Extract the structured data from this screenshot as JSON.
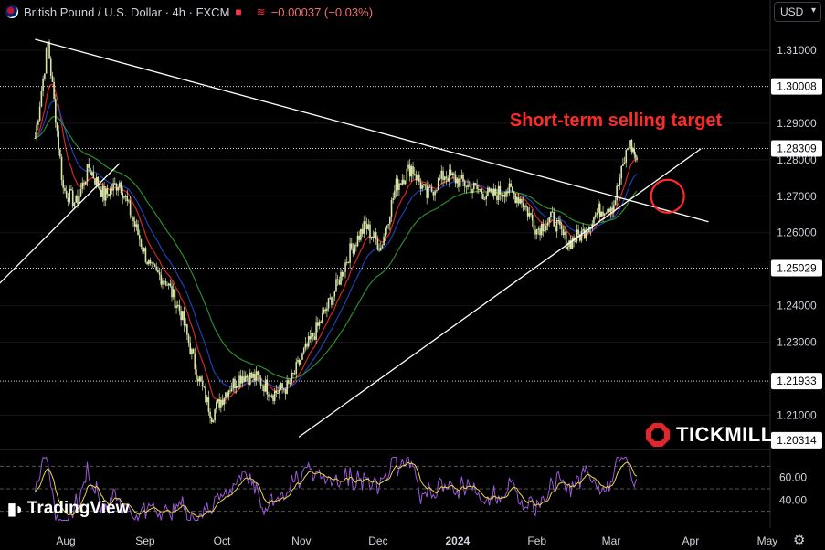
{
  "header": {
    "symbol_title": "British Pound / U.S. Dollar · 4h · FXCM",
    "change": "−0.00037 (−0.03%)"
  },
  "currency_selector": {
    "value": "USD"
  },
  "branding": {
    "tradingview": "TradingView",
    "tickmill": "TICKMILL"
  },
  "colors": {
    "background": "#000000",
    "candle": "#d9e6a8",
    "ema_fast": "#d62728",
    "ema_mid": "#1f3fb4",
    "ema_slow": "#2e8b2e",
    "trendline": "#ffffff",
    "annotation": "#ff2a2a",
    "rsi": "#9b59d6",
    "rsi_signal": "#e6d84a"
  },
  "chart_data": {
    "type": "line",
    "title": "British Pound / U.S. Dollar · 4h · FXCM",
    "x_ticks": [
      "Aug",
      "Sep",
      "Oct",
      "Nov",
      "Dec",
      "2024",
      "Feb",
      "Mar",
      "Apr",
      "May"
    ],
    "y_ticks": [
      "1.31000",
      "1.29000",
      "1.28000",
      "1.27000",
      "1.26000",
      "1.24000",
      "1.23000",
      "1.21000"
    ],
    "ylim": [
      1.2031,
      1.3155
    ],
    "price_labels": [
      "1.30008",
      "1.28309",
      "1.25029",
      "1.21933",
      "1.20314"
    ],
    "annotation": "Short-term selling target",
    "series": [
      {
        "name": "",
        "style": "candles",
        "x": [
          "2023-07-20",
          "2023-07-25",
          "2023-07-31",
          "2023-08-05",
          "2023-08-10",
          "2023-08-16",
          "2023-08-22",
          "2023-08-28",
          "2023-09-03",
          "2023-09-09",
          "2023-09-15",
          "2023-09-21",
          "2023-09-27",
          "2023-10-03",
          "2023-10-09",
          "2023-10-15",
          "2023-10-21",
          "2023-10-27",
          "2023-11-02",
          "2023-11-08",
          "2023-11-14",
          "2023-11-20",
          "2023-11-26",
          "2023-12-02",
          "2023-12-08",
          "2023-12-14",
          "2023-12-20",
          "2023-12-27",
          "2024-01-02",
          "2024-01-08",
          "2024-01-14",
          "2024-01-20",
          "2024-01-26",
          "2024-02-01",
          "2024-02-07",
          "2024-02-13",
          "2024-02-19",
          "2024-02-25",
          "2024-03-02",
          "2024-03-08",
          "2024-03-11"
        ],
        "values": [
          1.286,
          1.312,
          1.272,
          1.268,
          1.278,
          1.27,
          1.274,
          1.262,
          1.25,
          1.247,
          1.238,
          1.222,
          1.21,
          1.217,
          1.221,
          1.22,
          1.216,
          1.218,
          1.227,
          1.235,
          1.244,
          1.255,
          1.262,
          1.256,
          1.273,
          1.278,
          1.27,
          1.276,
          1.274,
          1.272,
          1.27,
          1.272,
          1.269,
          1.261,
          1.264,
          1.257,
          1.26,
          1.266,
          1.268,
          1.285,
          1.28
        ]
      },
      {
        "name": "",
        "style": "ema-fast",
        "color": "#d62728"
      },
      {
        "name": "",
        "style": "ema-mid",
        "color": "#1f3fb4"
      },
      {
        "name": "",
        "style": "ema-slow",
        "color": "#2e8b2e"
      }
    ],
    "trendlines": [
      {
        "from": [
          "2023-07-20",
          1.313
        ],
        "to": [
          "2024-04-08",
          1.263
        ]
      },
      {
        "from": [
          "2023-10-31",
          1.204
        ],
        "to": [
          "2024-04-05",
          1.283
        ]
      },
      {
        "from": [
          "2023-07-06",
          1.246
        ],
        "to": [
          "2023-08-22",
          1.279
        ]
      }
    ],
    "horizontal_levels": [
      1.30008,
      1.28309,
      1.25029,
      1.21933
    ],
    "circle_target": [
      "2024-03-23",
      1.27
    ],
    "rsi": {
      "y_ticks": [
        "60.00",
        "40.00"
      ],
      "ylim": [
        20,
        80
      ]
    }
  }
}
